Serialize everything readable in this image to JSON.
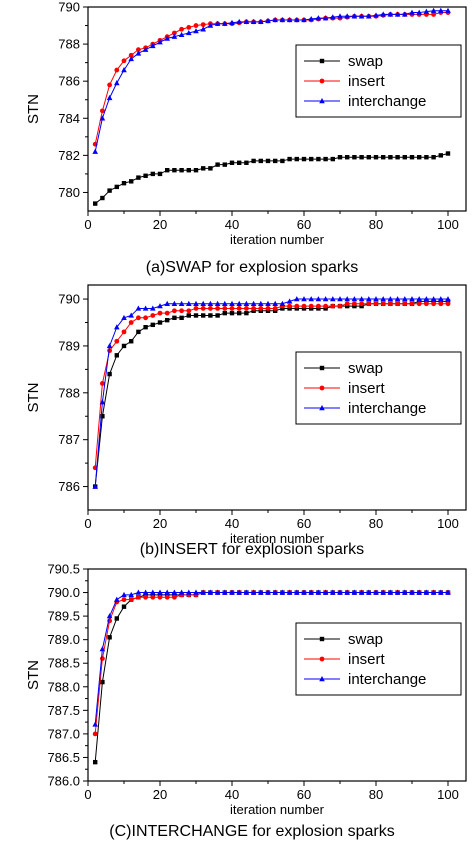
{
  "colors": {
    "swap": "#000000",
    "insert": "#ff0000",
    "interchange": "#0000ff"
  },
  "chart_data": [
    {
      "type": "line",
      "caption": "(a)SWAP for explosion sparks",
      "xlabel": "iteration number",
      "ylabel": "STN",
      "xlim": [
        0,
        105
      ],
      "ylim": [
        779,
        790
      ],
      "xticks": [
        0,
        20,
        40,
        60,
        80,
        100
      ],
      "yticks": [
        780,
        782,
        784,
        786,
        788,
        790
      ],
      "ytick_labels": [
        "780",
        "782",
        "784",
        "786",
        "788",
        "790"
      ],
      "legend_position": "right",
      "series": [
        {
          "name": "swap",
          "marker": "square",
          "x": [
            2,
            4,
            6,
            8,
            10,
            12,
            14,
            16,
            18,
            20,
            22,
            24,
            26,
            28,
            30,
            32,
            34,
            36,
            38,
            40,
            42,
            44,
            46,
            48,
            50,
            52,
            54,
            56,
            58,
            60,
            62,
            64,
            66,
            68,
            70,
            72,
            74,
            76,
            78,
            80,
            82,
            84,
            86,
            88,
            90,
            92,
            94,
            96,
            98,
            100
          ],
          "y": [
            779.4,
            779.7,
            780.1,
            780.3,
            780.5,
            780.6,
            780.8,
            780.9,
            781.0,
            781.0,
            781.2,
            781.2,
            781.2,
            781.2,
            781.2,
            781.3,
            781.3,
            781.5,
            781.5,
            781.6,
            781.6,
            781.6,
            781.7,
            781.7,
            781.7,
            781.7,
            781.7,
            781.8,
            781.8,
            781.8,
            781.8,
            781.8,
            781.8,
            781.8,
            781.9,
            781.9,
            781.9,
            781.9,
            781.9,
            781.9,
            781.9,
            781.9,
            781.9,
            781.9,
            781.9,
            781.9,
            781.9,
            781.9,
            782.0,
            782.1
          ]
        },
        {
          "name": "insert",
          "marker": "circle",
          "x": [
            2,
            4,
            6,
            8,
            10,
            12,
            14,
            16,
            18,
            20,
            22,
            24,
            26,
            28,
            30,
            32,
            34,
            36,
            38,
            40,
            42,
            44,
            46,
            48,
            50,
            52,
            54,
            56,
            58,
            60,
            62,
            64,
            66,
            68,
            70,
            72,
            74,
            76,
            78,
            80,
            82,
            84,
            86,
            88,
            90,
            92,
            94,
            96,
            98,
            100
          ],
          "y": [
            782.6,
            784.4,
            785.8,
            786.6,
            787.1,
            787.4,
            787.7,
            787.8,
            788.0,
            788.2,
            788.4,
            788.6,
            788.8,
            788.9,
            789.0,
            789.05,
            789.1,
            789.1,
            789.1,
            789.1,
            789.15,
            789.2,
            789.2,
            789.2,
            789.25,
            789.3,
            789.3,
            789.3,
            789.3,
            789.3,
            789.3,
            789.35,
            789.4,
            789.4,
            789.4,
            789.45,
            789.5,
            789.5,
            789.5,
            789.5,
            789.55,
            789.6,
            789.6,
            789.6,
            789.6,
            789.6,
            789.6,
            789.6,
            789.7,
            789.7
          ]
        },
        {
          "name": "interchange",
          "marker": "triangle",
          "x": [
            2,
            4,
            6,
            8,
            10,
            12,
            14,
            16,
            18,
            20,
            22,
            24,
            26,
            28,
            30,
            32,
            34,
            36,
            38,
            40,
            42,
            44,
            46,
            48,
            50,
            52,
            54,
            56,
            58,
            60,
            62,
            64,
            66,
            68,
            70,
            72,
            74,
            76,
            78,
            80,
            82,
            84,
            86,
            88,
            90,
            92,
            94,
            96,
            98,
            100
          ],
          "y": [
            782.2,
            784.0,
            785.1,
            785.9,
            786.6,
            787.2,
            787.5,
            787.7,
            787.9,
            788.1,
            788.3,
            788.4,
            788.5,
            788.6,
            788.7,
            788.8,
            789.0,
            789.1,
            789.1,
            789.15,
            789.2,
            789.2,
            789.2,
            789.2,
            789.25,
            789.3,
            789.3,
            789.3,
            789.3,
            789.3,
            789.35,
            789.4,
            789.4,
            789.45,
            789.5,
            789.5,
            789.5,
            789.5,
            789.5,
            789.55,
            789.6,
            789.6,
            789.6,
            789.6,
            789.7,
            789.7,
            789.75,
            789.8,
            789.8,
            789.8
          ]
        }
      ]
    },
    {
      "type": "line",
      "caption": "(b)INSERT for explosion sparks",
      "xlabel": "iteration number",
      "ylabel": "STN",
      "xlim": [
        0,
        105
      ],
      "ylim": [
        785.5,
        790.3
      ],
      "xticks": [
        0,
        20,
        40,
        60,
        80,
        100
      ],
      "yticks": [
        786,
        787,
        788,
        789,
        790
      ],
      "ytick_labels": [
        "786",
        "787",
        "788",
        "789",
        "790"
      ],
      "legend_position": "right",
      "series": [
        {
          "name": "swap",
          "marker": "square",
          "x": [
            2,
            4,
            6,
            8,
            10,
            12,
            14,
            16,
            18,
            20,
            22,
            24,
            26,
            28,
            30,
            32,
            34,
            36,
            38,
            40,
            42,
            44,
            46,
            48,
            50,
            52,
            54,
            56,
            58,
            60,
            62,
            64,
            66,
            68,
            70,
            72,
            74,
            76,
            78,
            80,
            82,
            84,
            86,
            88,
            90,
            92,
            94,
            96,
            98,
            100
          ],
          "y": [
            786.0,
            787.5,
            788.4,
            788.8,
            789.0,
            789.1,
            789.3,
            789.4,
            789.45,
            789.5,
            789.55,
            789.6,
            789.6,
            789.65,
            789.65,
            789.65,
            789.65,
            789.65,
            789.7,
            789.7,
            789.7,
            789.7,
            789.75,
            789.75,
            789.75,
            789.75,
            789.8,
            789.8,
            789.8,
            789.8,
            789.8,
            789.8,
            789.8,
            789.85,
            789.85,
            789.85,
            789.85,
            789.85,
            789.9,
            789.9,
            789.9,
            789.9,
            789.9,
            789.9,
            789.9,
            789.95,
            789.95,
            789.95,
            789.95,
            789.95
          ]
        },
        {
          "name": "insert",
          "marker": "circle",
          "x": [
            2,
            4,
            6,
            8,
            10,
            12,
            14,
            16,
            18,
            20,
            22,
            24,
            26,
            28,
            30,
            32,
            34,
            36,
            38,
            40,
            42,
            44,
            46,
            48,
            50,
            52,
            54,
            56,
            58,
            60,
            62,
            64,
            66,
            68,
            70,
            72,
            74,
            76,
            78,
            80,
            82,
            84,
            86,
            88,
            90,
            92,
            94,
            96,
            98,
            100
          ],
          "y": [
            786.4,
            788.2,
            788.9,
            789.1,
            789.3,
            789.5,
            789.6,
            789.6,
            789.65,
            789.7,
            789.7,
            789.75,
            789.75,
            789.75,
            789.8,
            789.8,
            789.8,
            789.8,
            789.8,
            789.8,
            789.8,
            789.8,
            789.8,
            789.8,
            789.8,
            789.8,
            789.85,
            789.85,
            789.85,
            789.85,
            789.85,
            789.85,
            789.85,
            789.85,
            789.85,
            789.9,
            789.9,
            789.9,
            789.9,
            789.9,
            789.9,
            789.9,
            789.9,
            789.9,
            789.9,
            789.9,
            789.9,
            789.9,
            789.9,
            789.9
          ]
        },
        {
          "name": "interchange",
          "marker": "triangle",
          "x": [
            2,
            4,
            6,
            8,
            10,
            12,
            14,
            16,
            18,
            20,
            22,
            24,
            26,
            28,
            30,
            32,
            34,
            36,
            38,
            40,
            42,
            44,
            46,
            48,
            50,
            52,
            54,
            56,
            58,
            60,
            62,
            64,
            66,
            68,
            70,
            72,
            74,
            76,
            78,
            80,
            82,
            84,
            86,
            88,
            90,
            92,
            94,
            96,
            98,
            100
          ],
          "y": [
            786.0,
            787.8,
            789.0,
            789.4,
            789.6,
            789.65,
            789.8,
            789.8,
            789.8,
            789.85,
            789.9,
            789.9,
            789.9,
            789.9,
            789.9,
            789.9,
            789.9,
            789.9,
            789.9,
            789.9,
            789.9,
            789.9,
            789.9,
            789.9,
            789.9,
            789.9,
            789.9,
            789.95,
            790.0,
            790.0,
            790.0,
            790.0,
            790.0,
            790.0,
            790.0,
            790.0,
            790.0,
            790.0,
            790.0,
            790.0,
            790.0,
            790.0,
            790.0,
            790.0,
            790.0,
            790.0,
            790.0,
            790.0,
            790.0,
            790.0
          ]
        }
      ]
    },
    {
      "type": "line",
      "caption": "(C)INTERCHANGE for explosion sparks",
      "xlabel": "iteration number",
      "ylabel": "STN",
      "xlim": [
        0,
        105
      ],
      "ylim": [
        786.0,
        790.5
      ],
      "xticks": [
        0,
        20,
        40,
        60,
        80,
        100
      ],
      "yticks": [
        786.0,
        786.5,
        787.0,
        787.5,
        788.0,
        788.5,
        789.0,
        789.5,
        790.0,
        790.5
      ],
      "ytick_labels": [
        "786.0",
        "786.5",
        "787.0",
        "787.5",
        "788.0",
        "788.5",
        "789.0",
        "789.5",
        "790.0",
        "790.5"
      ],
      "legend_position": "right",
      "series": [
        {
          "name": "swap",
          "marker": "square",
          "x": [
            2,
            4,
            6,
            8,
            10,
            12,
            14,
            16,
            18,
            20,
            22,
            24,
            26,
            28,
            30,
            32,
            34,
            36,
            38,
            40,
            42,
            44,
            46,
            48,
            50,
            52,
            54,
            56,
            58,
            60,
            62,
            64,
            66,
            68,
            70,
            72,
            74,
            76,
            78,
            80,
            82,
            84,
            86,
            88,
            90,
            92,
            94,
            96,
            98,
            100
          ],
          "y": [
            786.4,
            788.1,
            789.05,
            789.45,
            789.7,
            789.85,
            789.9,
            789.95,
            789.95,
            789.95,
            789.95,
            789.95,
            789.95,
            789.95,
            789.95,
            790.0,
            790.0,
            790.0,
            790.0,
            790.0,
            790.0,
            790.0,
            790.0,
            790.0,
            790.0,
            790.0,
            790.0,
            790.0,
            790.0,
            790.0,
            790.0,
            790.0,
            790.0,
            790.0,
            790.0,
            790.0,
            790.0,
            790.0,
            790.0,
            790.0,
            790.0,
            790.0,
            790.0,
            790.0,
            790.0,
            790.0,
            790.0,
            790.0,
            790.0,
            790.0
          ]
        },
        {
          "name": "insert",
          "marker": "circle",
          "x": [
            2,
            4,
            6,
            8,
            10,
            12,
            14,
            16,
            18,
            20,
            22,
            24,
            26,
            28,
            30,
            32,
            34,
            36,
            38,
            40,
            42,
            44,
            46,
            48,
            50,
            52,
            54,
            56,
            58,
            60,
            62,
            64,
            66,
            68,
            70,
            72,
            74,
            76,
            78,
            80,
            82,
            84,
            86,
            88,
            90,
            92,
            94,
            96,
            98,
            100
          ],
          "y": [
            787.0,
            788.6,
            789.4,
            789.8,
            789.85,
            789.85,
            789.9,
            789.9,
            789.9,
            789.9,
            789.9,
            789.9,
            789.95,
            789.95,
            789.95,
            790.0,
            790.0,
            790.0,
            790.0,
            790.0,
            790.0,
            790.0,
            790.0,
            790.0,
            790.0,
            790.0,
            790.0,
            790.0,
            790.0,
            790.0,
            790.0,
            790.0,
            790.0,
            790.0,
            790.0,
            790.0,
            790.0,
            790.0,
            790.0,
            790.0,
            790.0,
            790.0,
            790.0,
            790.0,
            790.0,
            790.0,
            790.0,
            790.0,
            790.0,
            790.0
          ]
        },
        {
          "name": "interchange",
          "marker": "triangle",
          "x": [
            2,
            4,
            6,
            8,
            10,
            12,
            14,
            16,
            18,
            20,
            22,
            24,
            26,
            28,
            30,
            32,
            34,
            36,
            38,
            40,
            42,
            44,
            46,
            48,
            50,
            52,
            54,
            56,
            58,
            60,
            62,
            64,
            66,
            68,
            70,
            72,
            74,
            76,
            78,
            80,
            82,
            84,
            86,
            88,
            90,
            92,
            94,
            96,
            98,
            100
          ],
          "y": [
            787.2,
            788.8,
            789.5,
            789.85,
            789.95,
            789.95,
            790.0,
            790.0,
            790.0,
            790.0,
            790.0,
            790.0,
            790.0,
            790.0,
            790.0,
            790.0,
            790.0,
            790.0,
            790.0,
            790.0,
            790.0,
            790.0,
            790.0,
            790.0,
            790.0,
            790.0,
            790.0,
            790.0,
            790.0,
            790.0,
            790.0,
            790.0,
            790.0,
            790.0,
            790.0,
            790.0,
            790.0,
            790.0,
            790.0,
            790.0,
            790.0,
            790.0,
            790.0,
            790.0,
            790.0,
            790.0,
            790.0,
            790.0,
            790.0,
            790.0
          ]
        }
      ]
    }
  ]
}
